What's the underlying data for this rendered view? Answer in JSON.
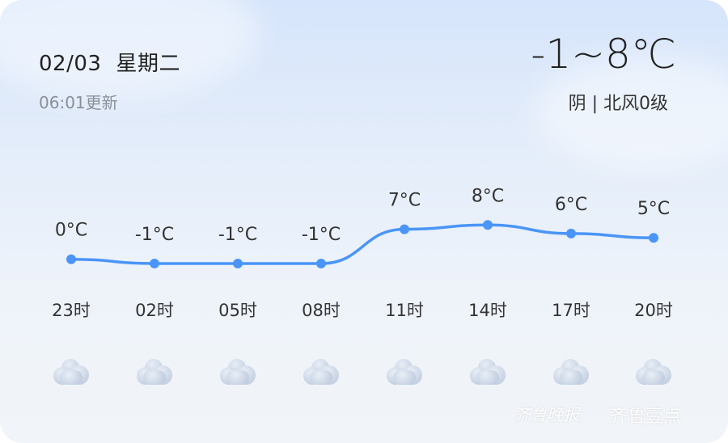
{
  "header": {
    "date": "02/03",
    "weekday": "星期二",
    "updated": "06:01更新",
    "range": "-1~8℃",
    "condition": "阴 | 北风0级"
  },
  "hourly": [
    {
      "time": "23时",
      "temp": 0,
      "label": "0°C",
      "icon": "cloudy-icon"
    },
    {
      "time": "02时",
      "temp": -1,
      "label": "-1°C",
      "icon": "cloudy-icon"
    },
    {
      "time": "05时",
      "temp": -1,
      "label": "-1°C",
      "icon": "cloudy-icon"
    },
    {
      "time": "08时",
      "temp": -1,
      "label": "-1°C",
      "icon": "cloudy-icon"
    },
    {
      "time": "11时",
      "temp": 7,
      "label": "7°C",
      "icon": "cloudy-icon"
    },
    {
      "time": "14时",
      "temp": 8,
      "label": "8°C",
      "icon": "cloudy-icon"
    },
    {
      "time": "17时",
      "temp": 6,
      "label": "6°C",
      "icon": "cloudy-icon"
    },
    {
      "time": "20时",
      "temp": 5,
      "label": "5°C",
      "icon": "cloudy-icon"
    }
  ],
  "colors": {
    "line": "#4a95f7"
  },
  "watermark": {
    "left": "齐鲁晚报",
    "right": "齐鲁壹点"
  }
}
